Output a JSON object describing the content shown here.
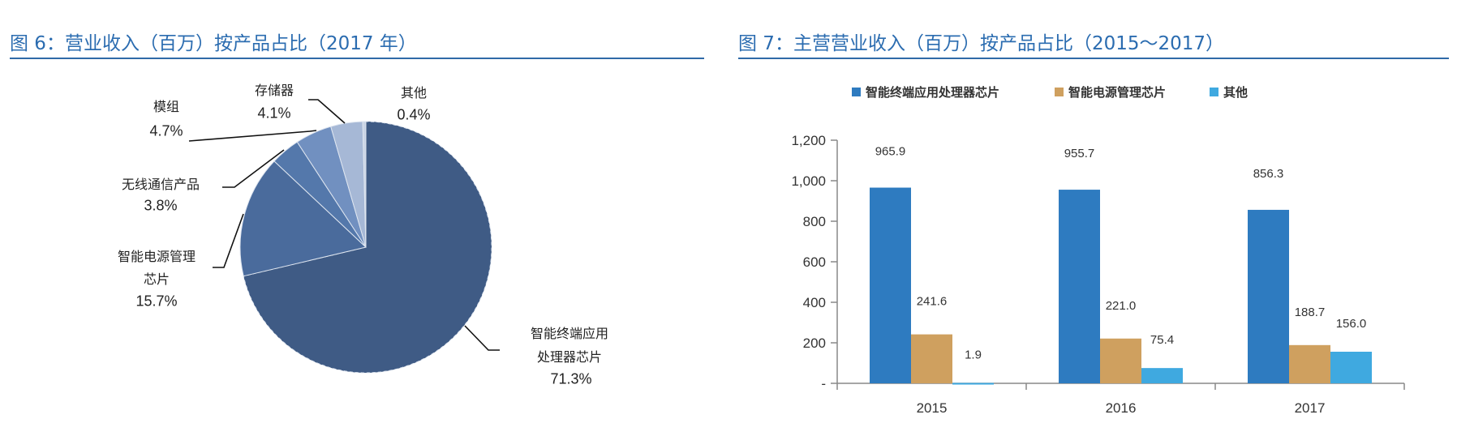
{
  "chart_data": [
    {
      "type": "pie",
      "title": "图 6：营业收入（百万）按产品占比（2017 年）",
      "slices": [
        {
          "label_line1": "智能终端应用",
          "label_line2": "处理器芯片",
          "label": "智能终端应用处理器芯片",
          "value": 71.3,
          "value_label": "71.3%",
          "color": "#3f5b85"
        },
        {
          "label_line1": "智能电源管理",
          "label_line2": "芯片",
          "label": "智能电源管理芯片",
          "value": 15.7,
          "value_label": "15.7%",
          "color": "#4a6b9c"
        },
        {
          "label_line1": "无线通信产品",
          "label": "无线通信产品",
          "value": 3.8,
          "value_label": "3.8%",
          "color": "#5478ab"
        },
        {
          "label_line1": "模组",
          "label": "模组",
          "value": 4.7,
          "value_label": "4.7%",
          "color": "#7190c0"
        },
        {
          "label_line1": "存储器",
          "label": "存储器",
          "value": 4.1,
          "value_label": "4.1%",
          "color": "#a6b8d6"
        },
        {
          "label_line1": "其他",
          "label": "其他",
          "value": 0.4,
          "value_label": "0.4%",
          "color": "#c9d4e6"
        }
      ]
    },
    {
      "type": "bar",
      "title": "图 7：主营营业收入（百万）按产品占比（2015～2017）",
      "categories": [
        "2015",
        "2016",
        "2017"
      ],
      "series": [
        {
          "name": "智能终端应用处理器芯片",
          "values": [
            965.9,
            955.7,
            856.3
          ],
          "labels": [
            "965.9",
            "955.7",
            "856.3"
          ],
          "color": "#2e7bc0"
        },
        {
          "name": "智能电源管理芯片",
          "values": [
            241.6,
            221.0,
            188.7
          ],
          "labels": [
            "241.6",
            "221.0",
            "188.7"
          ],
          "color": "#cfa05f"
        },
        {
          "name": "其他",
          "values": [
            1.9,
            75.4,
            156.0
          ],
          "labels": [
            "1.9",
            "75.4",
            "156.0"
          ],
          "color": "#3fa9e0"
        }
      ],
      "ylim": [
        0,
        1200
      ],
      "yticks": [
        0,
        200,
        400,
        600,
        800,
        1000,
        1200
      ],
      "ytick_labels": [
        "-",
        "200",
        "400",
        "600",
        "800",
        "1,000",
        "1,200"
      ],
      "legend": "top",
      "grid": false
    }
  ]
}
